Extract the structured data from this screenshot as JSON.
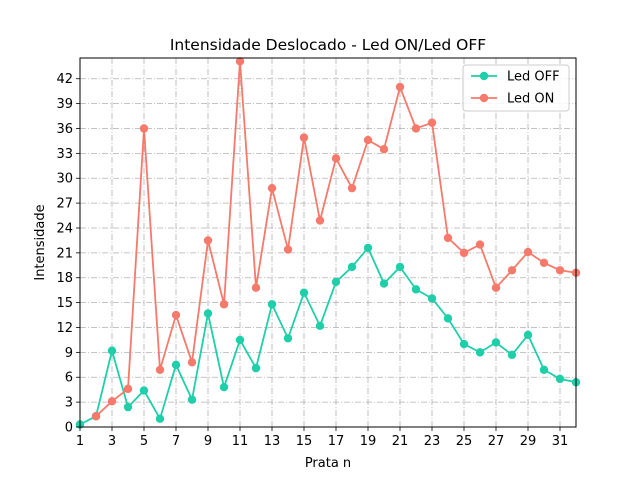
{
  "chart_data": {
    "type": "line",
    "title": "Intensidade Deslocado - Led ON/Led OFF",
    "xlabel": "Prata n",
    "ylabel": "Intensidade",
    "xlim": [
      1,
      32
    ],
    "ylim": [
      0,
      44.5
    ],
    "xticks": [
      1,
      3,
      5,
      7,
      9,
      11,
      13,
      15,
      17,
      19,
      21,
      23,
      25,
      27,
      29,
      31
    ],
    "yticks": [
      0,
      3,
      6,
      9,
      12,
      15,
      18,
      21,
      24,
      27,
      30,
      33,
      36,
      39,
      42
    ],
    "grid": true,
    "legend_position": "top-right",
    "series": [
      {
        "name": "Led OFF",
        "color": "#1fcfaa",
        "x": [
          1,
          2,
          3,
          4,
          5,
          6,
          7,
          8,
          9,
          10,
          11,
          12,
          13,
          14,
          15,
          16,
          17,
          18,
          19,
          20,
          21,
          22,
          23,
          24,
          25,
          26,
          27,
          28,
          29,
          30,
          31,
          32
        ],
        "values": [
          0.3,
          1.3,
          9.2,
          2.4,
          4.4,
          1.0,
          7.5,
          3.3,
          13.7,
          4.8,
          10.5,
          7.1,
          14.8,
          10.7,
          16.2,
          12.2,
          17.5,
          19.3,
          21.6,
          17.3,
          19.3,
          16.6,
          15.5,
          13.1,
          10.0,
          9.0,
          10.2,
          8.7,
          11.1,
          6.9,
          5.8,
          5.4
        ]
      },
      {
        "name": "Led ON",
        "color": "#f67a6c",
        "x": [
          2,
          3,
          4,
          5,
          6,
          7,
          8,
          9,
          10,
          11,
          12,
          13,
          14,
          15,
          16,
          17,
          18,
          19,
          20,
          21,
          22,
          23,
          24,
          25,
          26,
          27,
          28,
          29,
          30,
          31,
          32
        ],
        "values": [
          1.3,
          3.1,
          4.6,
          36.0,
          6.9,
          13.5,
          7.8,
          22.5,
          14.8,
          44.1,
          16.8,
          28.8,
          21.4,
          34.9,
          24.9,
          32.4,
          28.8,
          34.6,
          33.5,
          41.0,
          36.0,
          36.7,
          22.8,
          21.0,
          22.0,
          16.8,
          18.9,
          21.1,
          19.8,
          18.9,
          18.6
        ]
      }
    ]
  }
}
